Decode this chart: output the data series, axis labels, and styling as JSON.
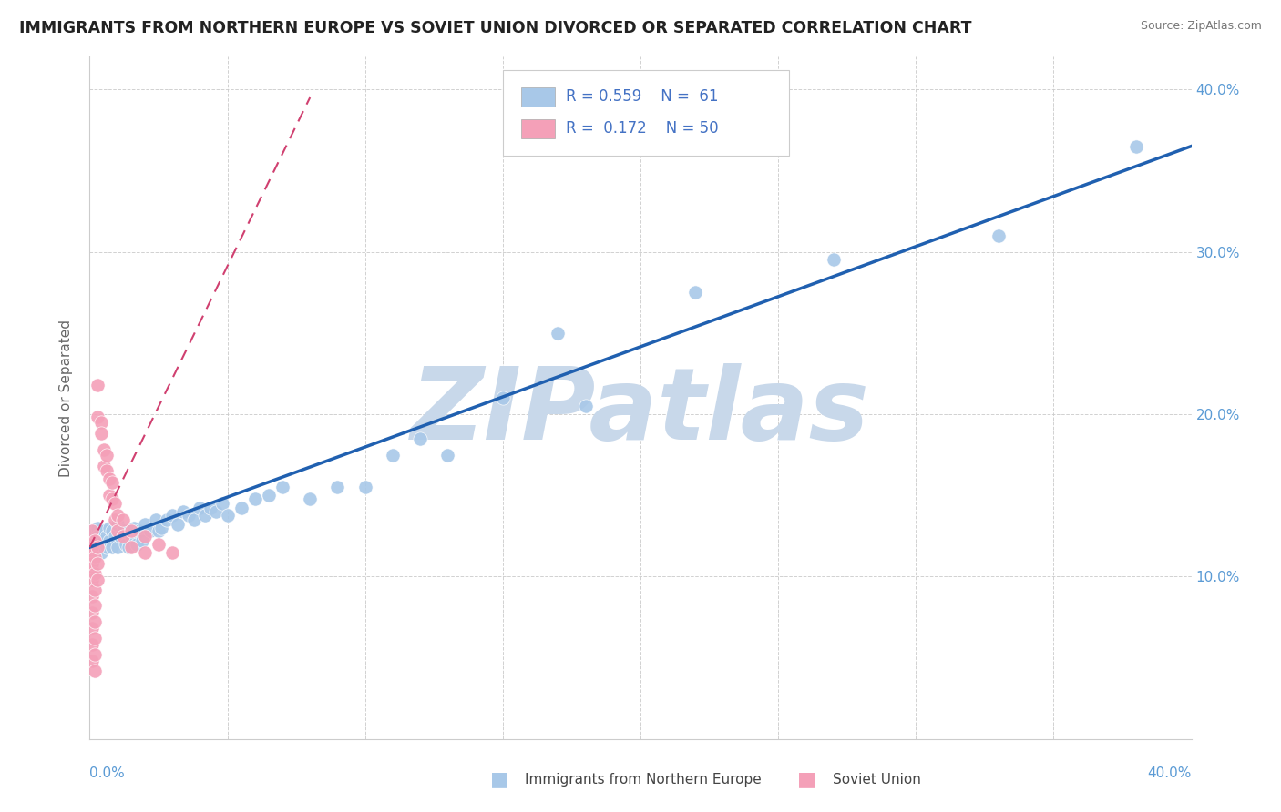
{
  "title": "IMMIGRANTS FROM NORTHERN EUROPE VS SOVIET UNION DIVORCED OR SEPARATED CORRELATION CHART",
  "source": "Source: ZipAtlas.com",
  "ylabel": "Divorced or Separated",
  "blue_color": "#a8c8e8",
  "pink_color": "#f4a0b8",
  "trendline_blue": "#2060b0",
  "trendline_pink": "#d04070",
  "watermark": "ZIPatlas",
  "watermark_color": "#c8d8ea",
  "blue_dots": [
    [
      0.001,
      0.128
    ],
    [
      0.002,
      0.122
    ],
    [
      0.002,
      0.118
    ],
    [
      0.003,
      0.13
    ],
    [
      0.003,
      0.125
    ],
    [
      0.004,
      0.12
    ],
    [
      0.004,
      0.115
    ],
    [
      0.005,
      0.128
    ],
    [
      0.005,
      0.122
    ],
    [
      0.006,
      0.118
    ],
    [
      0.006,
      0.125
    ],
    [
      0.007,
      0.13
    ],
    [
      0.007,
      0.122
    ],
    [
      0.008,
      0.128
    ],
    [
      0.008,
      0.118
    ],
    [
      0.009,
      0.125
    ],
    [
      0.01,
      0.132
    ],
    [
      0.01,
      0.118
    ],
    [
      0.011,
      0.125
    ],
    [
      0.012,
      0.128
    ],
    [
      0.013,
      0.12
    ],
    [
      0.014,
      0.118
    ],
    [
      0.015,
      0.125
    ],
    [
      0.016,
      0.13
    ],
    [
      0.017,
      0.12
    ],
    [
      0.018,
      0.128
    ],
    [
      0.019,
      0.122
    ],
    [
      0.02,
      0.132
    ],
    [
      0.022,
      0.128
    ],
    [
      0.024,
      0.135
    ],
    [
      0.025,
      0.128
    ],
    [
      0.026,
      0.13
    ],
    [
      0.028,
      0.135
    ],
    [
      0.03,
      0.138
    ],
    [
      0.032,
      0.132
    ],
    [
      0.034,
      0.14
    ],
    [
      0.036,
      0.138
    ],
    [
      0.038,
      0.135
    ],
    [
      0.04,
      0.142
    ],
    [
      0.042,
      0.138
    ],
    [
      0.044,
      0.142
    ],
    [
      0.046,
      0.14
    ],
    [
      0.048,
      0.145
    ],
    [
      0.05,
      0.138
    ],
    [
      0.055,
      0.142
    ],
    [
      0.06,
      0.148
    ],
    [
      0.065,
      0.15
    ],
    [
      0.07,
      0.155
    ],
    [
      0.08,
      0.148
    ],
    [
      0.09,
      0.155
    ],
    [
      0.1,
      0.155
    ],
    [
      0.11,
      0.175
    ],
    [
      0.12,
      0.185
    ],
    [
      0.13,
      0.175
    ],
    [
      0.15,
      0.21
    ],
    [
      0.17,
      0.25
    ],
    [
      0.18,
      0.205
    ],
    [
      0.22,
      0.275
    ],
    [
      0.27,
      0.295
    ],
    [
      0.33,
      0.31
    ],
    [
      0.38,
      0.365
    ]
  ],
  "pink_dots": [
    [
      0.001,
      0.12
    ],
    [
      0.001,
      0.115
    ],
    [
      0.001,
      0.11
    ],
    [
      0.001,
      0.105
    ],
    [
      0.001,
      0.128
    ],
    [
      0.001,
      0.118
    ],
    [
      0.001,
      0.108
    ],
    [
      0.001,
      0.098
    ],
    [
      0.001,
      0.088
    ],
    [
      0.001,
      0.078
    ],
    [
      0.001,
      0.068
    ],
    [
      0.001,
      0.058
    ],
    [
      0.001,
      0.048
    ],
    [
      0.002,
      0.122
    ],
    [
      0.002,
      0.112
    ],
    [
      0.002,
      0.102
    ],
    [
      0.002,
      0.092
    ],
    [
      0.002,
      0.082
    ],
    [
      0.002,
      0.072
    ],
    [
      0.002,
      0.062
    ],
    [
      0.002,
      0.052
    ],
    [
      0.002,
      0.042
    ],
    [
      0.003,
      0.118
    ],
    [
      0.003,
      0.108
    ],
    [
      0.003,
      0.098
    ],
    [
      0.003,
      0.198
    ],
    [
      0.003,
      0.218
    ],
    [
      0.004,
      0.195
    ],
    [
      0.004,
      0.188
    ],
    [
      0.005,
      0.178
    ],
    [
      0.005,
      0.168
    ],
    [
      0.006,
      0.175
    ],
    [
      0.006,
      0.165
    ],
    [
      0.007,
      0.16
    ],
    [
      0.007,
      0.15
    ],
    [
      0.008,
      0.158
    ],
    [
      0.008,
      0.148
    ],
    [
      0.009,
      0.145
    ],
    [
      0.009,
      0.135
    ],
    [
      0.01,
      0.138
    ],
    [
      0.01,
      0.128
    ],
    [
      0.012,
      0.135
    ],
    [
      0.012,
      0.125
    ],
    [
      0.015,
      0.128
    ],
    [
      0.015,
      0.118
    ],
    [
      0.02,
      0.125
    ],
    [
      0.02,
      0.115
    ],
    [
      0.025,
      0.12
    ],
    [
      0.03,
      0.115
    ]
  ],
  "xlim": [
    0.0,
    0.4
  ],
  "ylim": [
    0.0,
    0.42
  ],
  "yticks": [
    0.1,
    0.2,
    0.3,
    0.4
  ],
  "ytick_labels_right": [
    "10.0%",
    "20.0%",
    "30.0%",
    "40.0%"
  ],
  "blue_trendline_pts": [
    [
      0.0,
      0.118
    ],
    [
      0.4,
      0.365
    ]
  ],
  "pink_trendline_pts": [
    [
      0.0,
      0.118
    ],
    [
      0.08,
      0.395
    ]
  ]
}
